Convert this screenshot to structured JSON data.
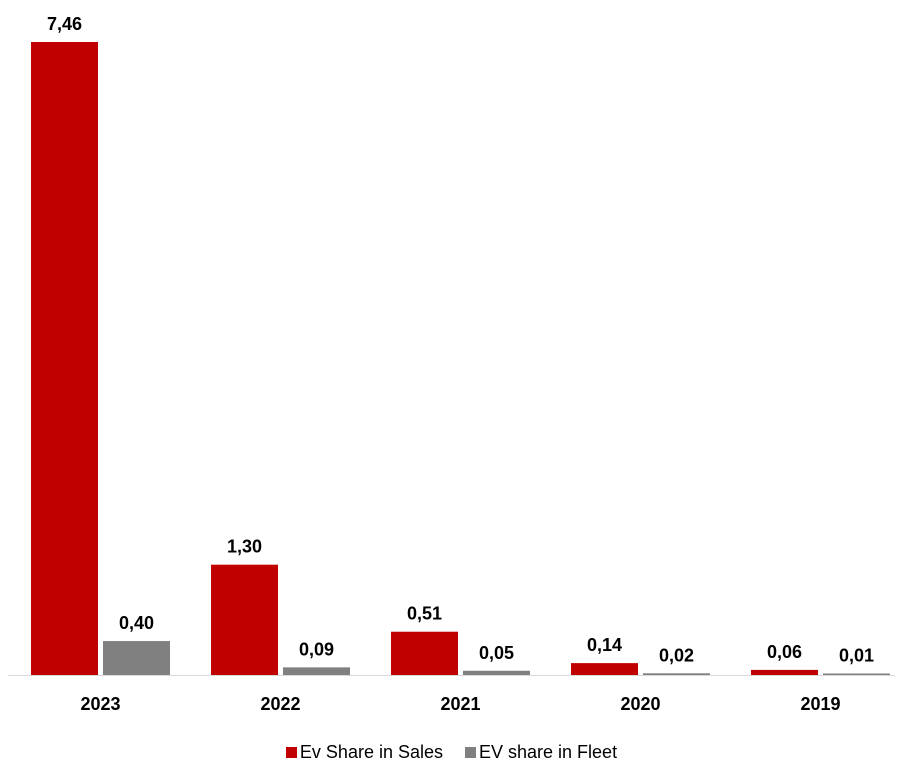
{
  "chart_data": {
    "type": "bar",
    "title": "",
    "xlabel": "",
    "ylabel": "",
    "categories": [
      "2023",
      "2022",
      "2021",
      "2020",
      "2019"
    ],
    "series": [
      {
        "name": "Ev Share in Sales",
        "color": "#C00000",
        "values": [
          7.46,
          1.3,
          0.51,
          0.14,
          0.06
        ],
        "labels": [
          "7,46",
          "1,30",
          "0,51",
          "0,14",
          "0,06"
        ]
      },
      {
        "name": "EV share in Fleet",
        "color": "#808080",
        "values": [
          0.4,
          0.09,
          0.05,
          0.02,
          0.01
        ],
        "labels": [
          "0,40",
          "0,09",
          "0,05",
          "0,02",
          "0,01"
        ]
      }
    ],
    "ylim": [
      0,
      7.46
    ],
    "grid": false,
    "legend_position": "bottom"
  }
}
